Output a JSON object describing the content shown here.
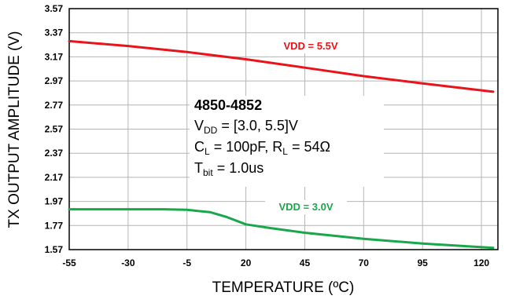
{
  "chart_data": {
    "type": "line",
    "title": "",
    "xlabel": "TEMPERATURE (ºC)",
    "ylabel": "TX OUTPUT AMPLITUDE (V)",
    "xlim": [
      -55,
      127
    ],
    "ylim": [
      1.57,
      3.57
    ],
    "x_ticks": [
      -55,
      -30,
      -5,
      20,
      45,
      70,
      95,
      120
    ],
    "y_ticks": [
      1.57,
      1.77,
      1.97,
      2.17,
      2.37,
      2.57,
      2.77,
      2.97,
      3.17,
      3.37,
      3.57
    ],
    "grid": true,
    "series": [
      {
        "name": "VDD = 5.5V",
        "color": "#e8141a",
        "x": [
          -55,
          -30,
          -5,
          20,
          45,
          70,
          95,
          125
        ],
        "y": [
          3.3,
          3.26,
          3.21,
          3.15,
          3.08,
          3.01,
          2.95,
          2.88
        ]
      },
      {
        "name": "VDD = 3.0V",
        "color": "#1aa64b",
        "x": [
          -55,
          -30,
          -15,
          -5,
          5,
          12,
          20,
          30,
          45,
          70,
          95,
          125
        ],
        "y": [
          1.905,
          1.905,
          1.905,
          1.9,
          1.88,
          1.84,
          1.78,
          1.75,
          1.71,
          1.66,
          1.62,
          1.585
        ]
      }
    ],
    "annotation": {
      "title": "4850-4852",
      "lines": [
        {
          "parts": [
            {
              "t": "V"
            },
            {
              "t": "DD",
              "sub": true
            },
            {
              "t": " = [3.0, 5.5]V"
            }
          ]
        },
        {
          "parts": [
            {
              "t": "C"
            },
            {
              "t": "L",
              "sub": true
            },
            {
              "t": " = 100pF, R"
            },
            {
              "t": "L",
              "sub": true
            },
            {
              "t": " = 54Ω"
            }
          ]
        },
        {
          "parts": [
            {
              "t": "T"
            },
            {
              "t": "bit",
              "sub": true
            },
            {
              "t": " = 1.0us"
            }
          ]
        }
      ]
    }
  }
}
